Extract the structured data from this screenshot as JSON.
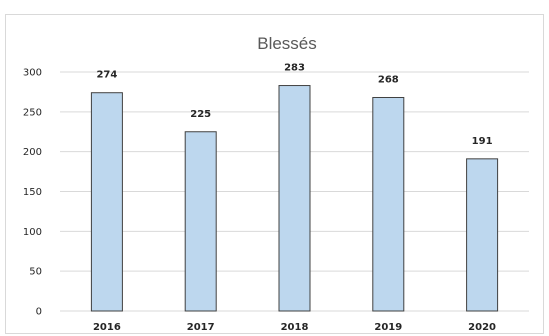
{
  "chart_data": {
    "type": "bar",
    "title": "Blessés",
    "categories": [
      "2016",
      "2017",
      "2018",
      "2019",
      "2020"
    ],
    "values": [
      274,
      225,
      283,
      268,
      191
    ],
    "ylim": [
      0,
      300
    ],
    "yticks": [
      0,
      50,
      100,
      150,
      200,
      250,
      300
    ],
    "grid": true,
    "data_labels": true,
    "colors": {
      "bar_fill": "#bdd7ee",
      "bar_stroke": "#404040",
      "grid": "#d9d9d9",
      "title": "#595959"
    }
  }
}
